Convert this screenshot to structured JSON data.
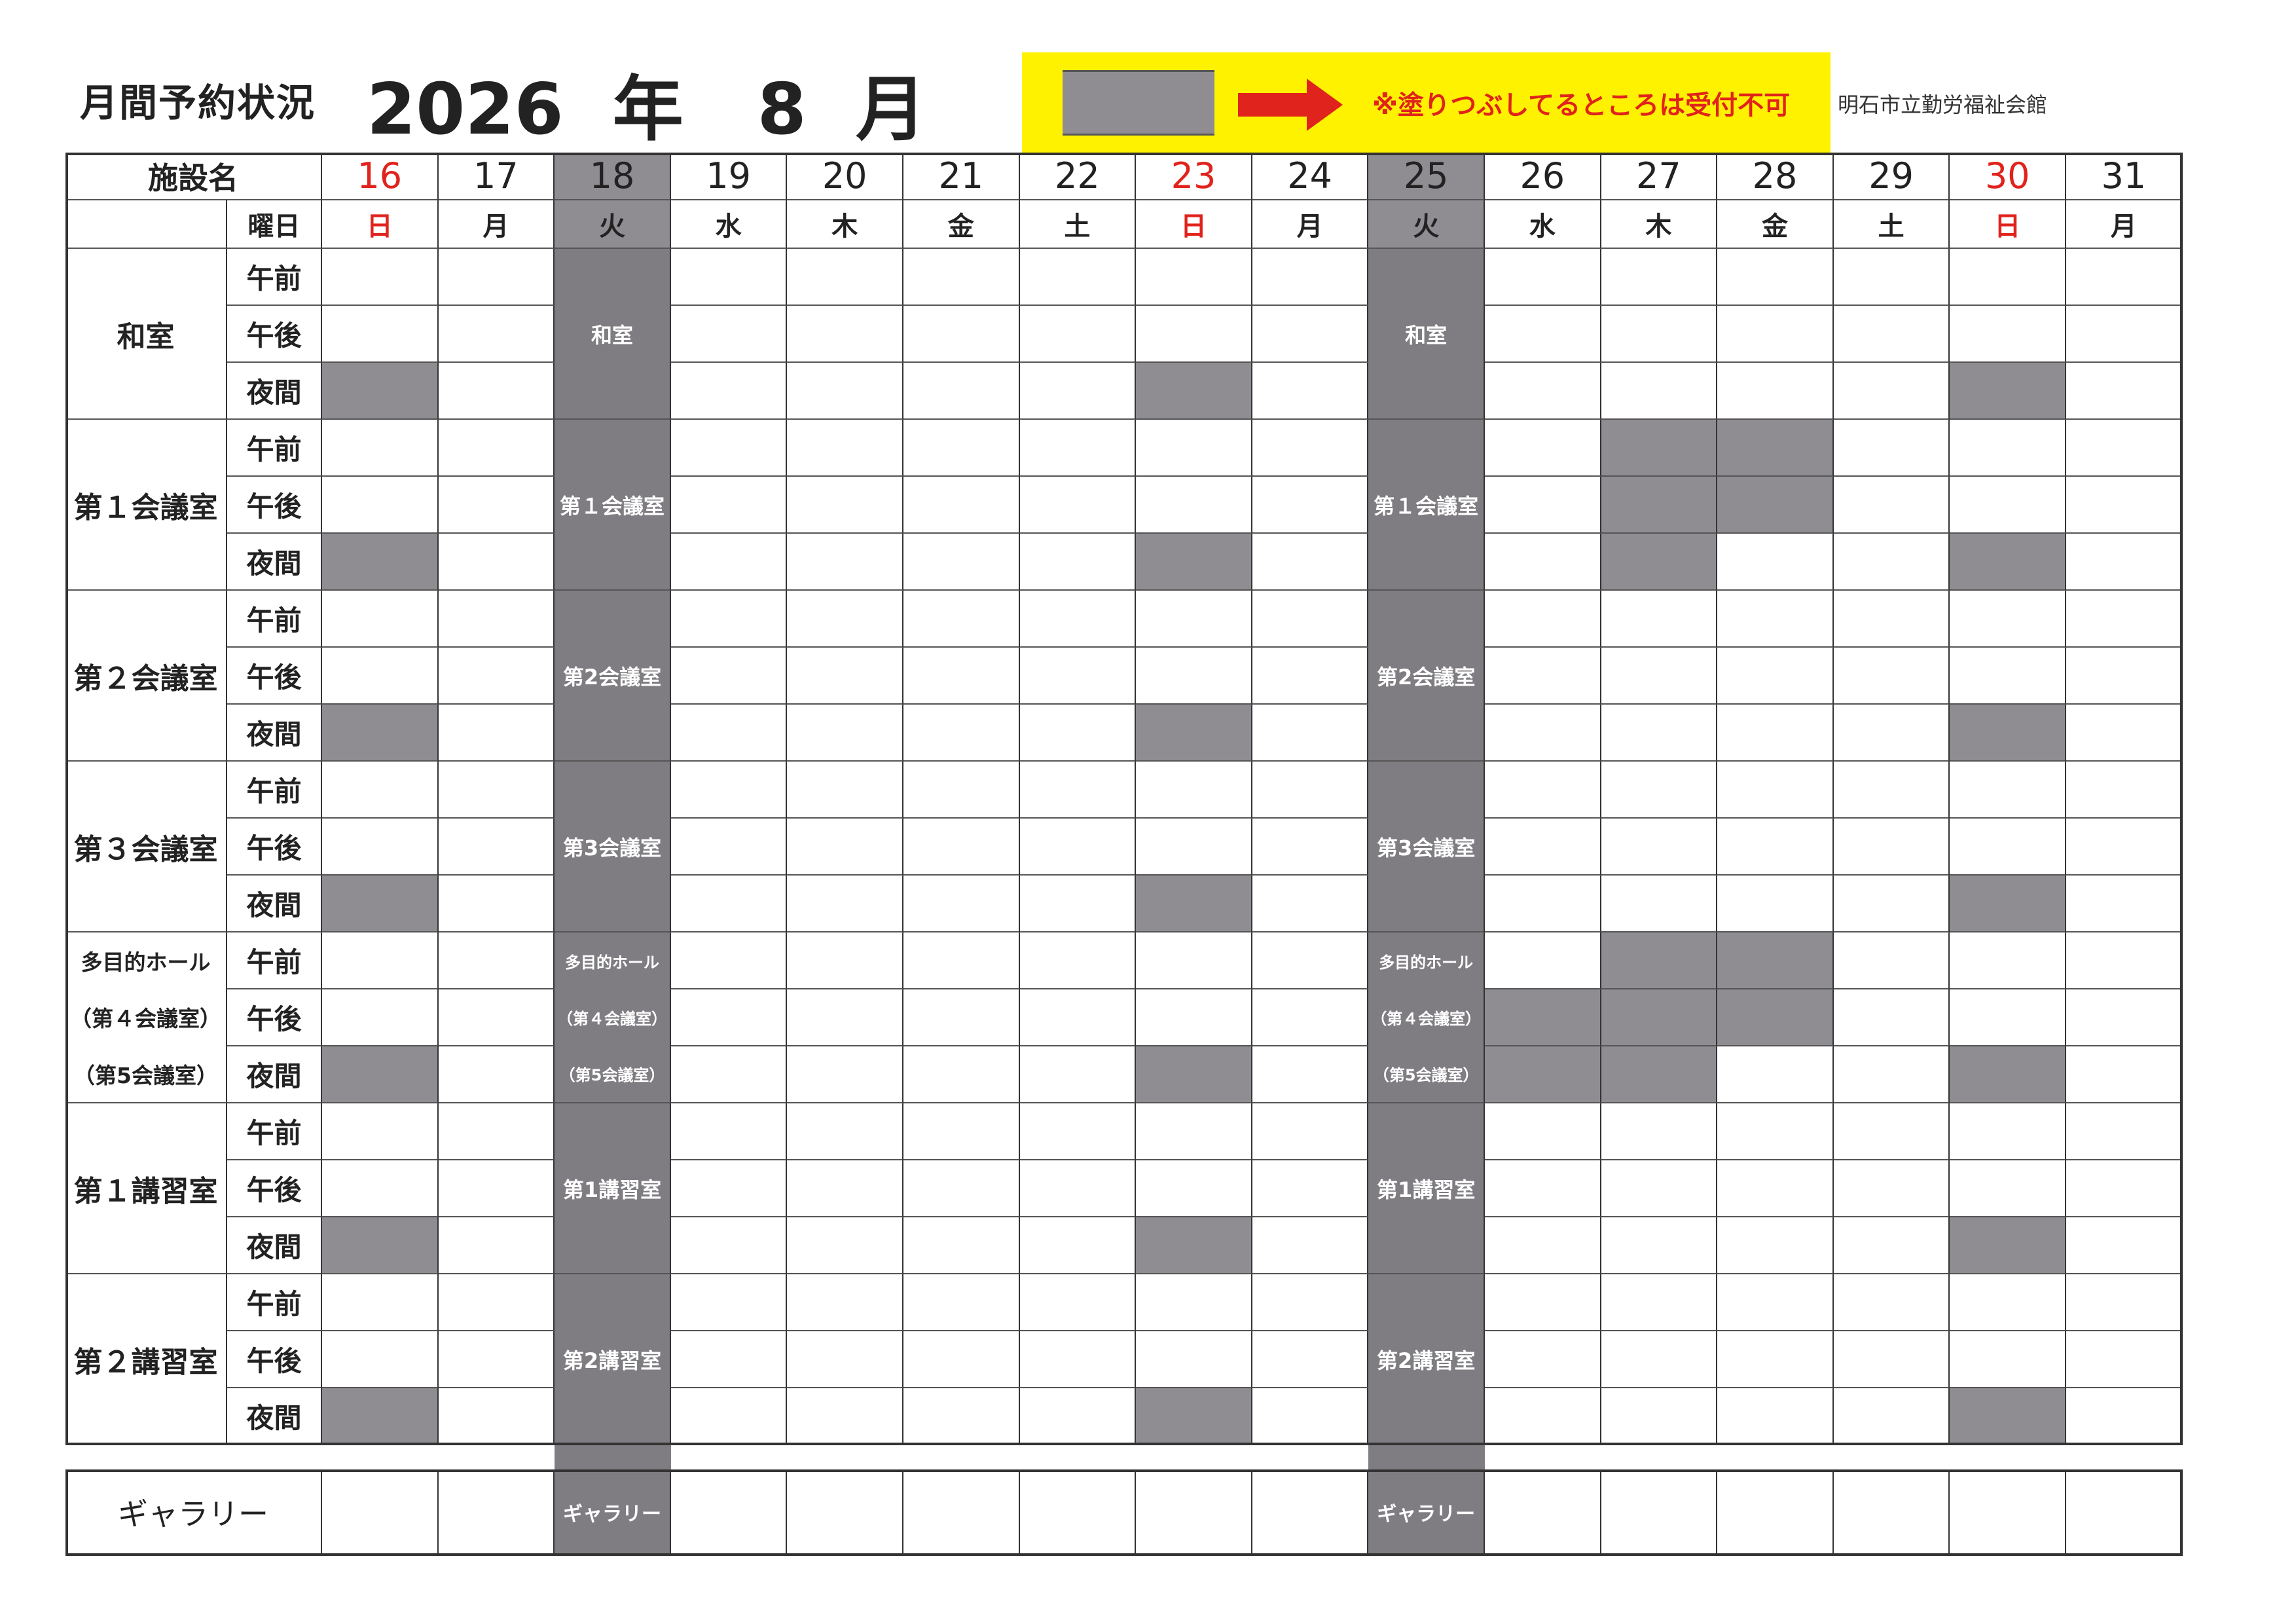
{
  "header": {
    "title": "月間予約状況",
    "year": "2026",
    "year_unit": "年",
    "month": "8",
    "month_unit": "月",
    "legend_note": "※塗りつぶしてるところは受付不可",
    "organization": "明石市立勤労福祉会館"
  },
  "table": {
    "facility_label": "施設名",
    "weekday_label": "曜日",
    "slots": [
      "午前",
      "午後",
      "夜間"
    ],
    "days": [
      {
        "date": "16",
        "weekday": "日",
        "holiday": true,
        "closed": false
      },
      {
        "date": "17",
        "weekday": "月",
        "holiday": false,
        "closed": false
      },
      {
        "date": "18",
        "weekday": "火",
        "holiday": false,
        "closed": true
      },
      {
        "date": "19",
        "weekday": "水",
        "holiday": false,
        "closed": false
      },
      {
        "date": "20",
        "weekday": "木",
        "holiday": false,
        "closed": false
      },
      {
        "date": "21",
        "weekday": "金",
        "holiday": false,
        "closed": false
      },
      {
        "date": "22",
        "weekday": "土",
        "holiday": false,
        "closed": false
      },
      {
        "date": "23",
        "weekday": "日",
        "holiday": true,
        "closed": false
      },
      {
        "date": "24",
        "weekday": "月",
        "holiday": false,
        "closed": false
      },
      {
        "date": "25",
        "weekday": "火",
        "holiday": false,
        "closed": true
      },
      {
        "date": "26",
        "weekday": "水",
        "holiday": false,
        "closed": false
      },
      {
        "date": "27",
        "weekday": "木",
        "holiday": false,
        "closed": false
      },
      {
        "date": "28",
        "weekday": "金",
        "holiday": false,
        "closed": false
      },
      {
        "date": "29",
        "weekday": "土",
        "holiday": false,
        "closed": false
      },
      {
        "date": "30",
        "weekday": "日",
        "holiday": true,
        "closed": false
      },
      {
        "date": "31",
        "weekday": "月",
        "holiday": false,
        "closed": false
      }
    ],
    "facilities": [
      {
        "name_lines": [
          "和室"
        ],
        "closed_label_lines": [
          "和室"
        ],
        "blocked": {
          "16": [
            "夜間"
          ],
          "23": [
            "夜間"
          ],
          "30": [
            "夜間"
          ]
        }
      },
      {
        "name_lines": [
          "第１会議室"
        ],
        "closed_label_lines": [
          "第１会議室"
        ],
        "blocked": {
          "16": [
            "夜間"
          ],
          "23": [
            "夜間"
          ],
          "27": [
            "午前",
            "午後",
            "夜間"
          ],
          "28": [
            "午前",
            "午後"
          ],
          "30": [
            "夜間"
          ]
        }
      },
      {
        "name_lines": [
          "第２会議室"
        ],
        "closed_label_lines": [
          "第2会議室"
        ],
        "blocked": {
          "16": [
            "夜間"
          ],
          "23": [
            "夜間"
          ],
          "30": [
            "夜間"
          ]
        }
      },
      {
        "name_lines": [
          "第３会議室"
        ],
        "closed_label_lines": [
          "第3会議室"
        ],
        "blocked": {
          "16": [
            "夜間"
          ],
          "23": [
            "夜間"
          ],
          "30": [
            "夜間"
          ]
        }
      },
      {
        "name_lines": [
          "多目的ホール",
          "（第４会議室）",
          "（第5会議室）"
        ],
        "closed_label_lines": [
          "多目的ホール",
          "（第４会議室）",
          "（第5会議室）"
        ],
        "blocked": {
          "16": [
            "夜間"
          ],
          "23": [
            "夜間"
          ],
          "26": [
            "午後",
            "夜間"
          ],
          "27": [
            "午前",
            "午後",
            "夜間"
          ],
          "28": [
            "午前",
            "午後"
          ],
          "30": [
            "夜間"
          ]
        }
      },
      {
        "name_lines": [
          "第１講習室"
        ],
        "closed_label_lines": [
          "第1講習室"
        ],
        "blocked": {
          "16": [
            "夜間"
          ],
          "23": [
            "夜間"
          ],
          "30": [
            "夜間"
          ]
        }
      },
      {
        "name_lines": [
          "第２講習室"
        ],
        "closed_label_lines": [
          "第2講習室"
        ],
        "blocked": {
          "16": [
            "夜間"
          ],
          "23": [
            "夜間"
          ],
          "30": [
            "夜間"
          ]
        }
      }
    ],
    "gallery": {
      "name": "ギャラリー",
      "closed_label": "ギャラリー"
    }
  },
  "colors": {
    "blocked": "#8f8d92",
    "closed_column": "#7f7d82",
    "holiday_text": "#e0231c",
    "legend_background": "#fff200",
    "legend_arrow": "#e0231c"
  }
}
